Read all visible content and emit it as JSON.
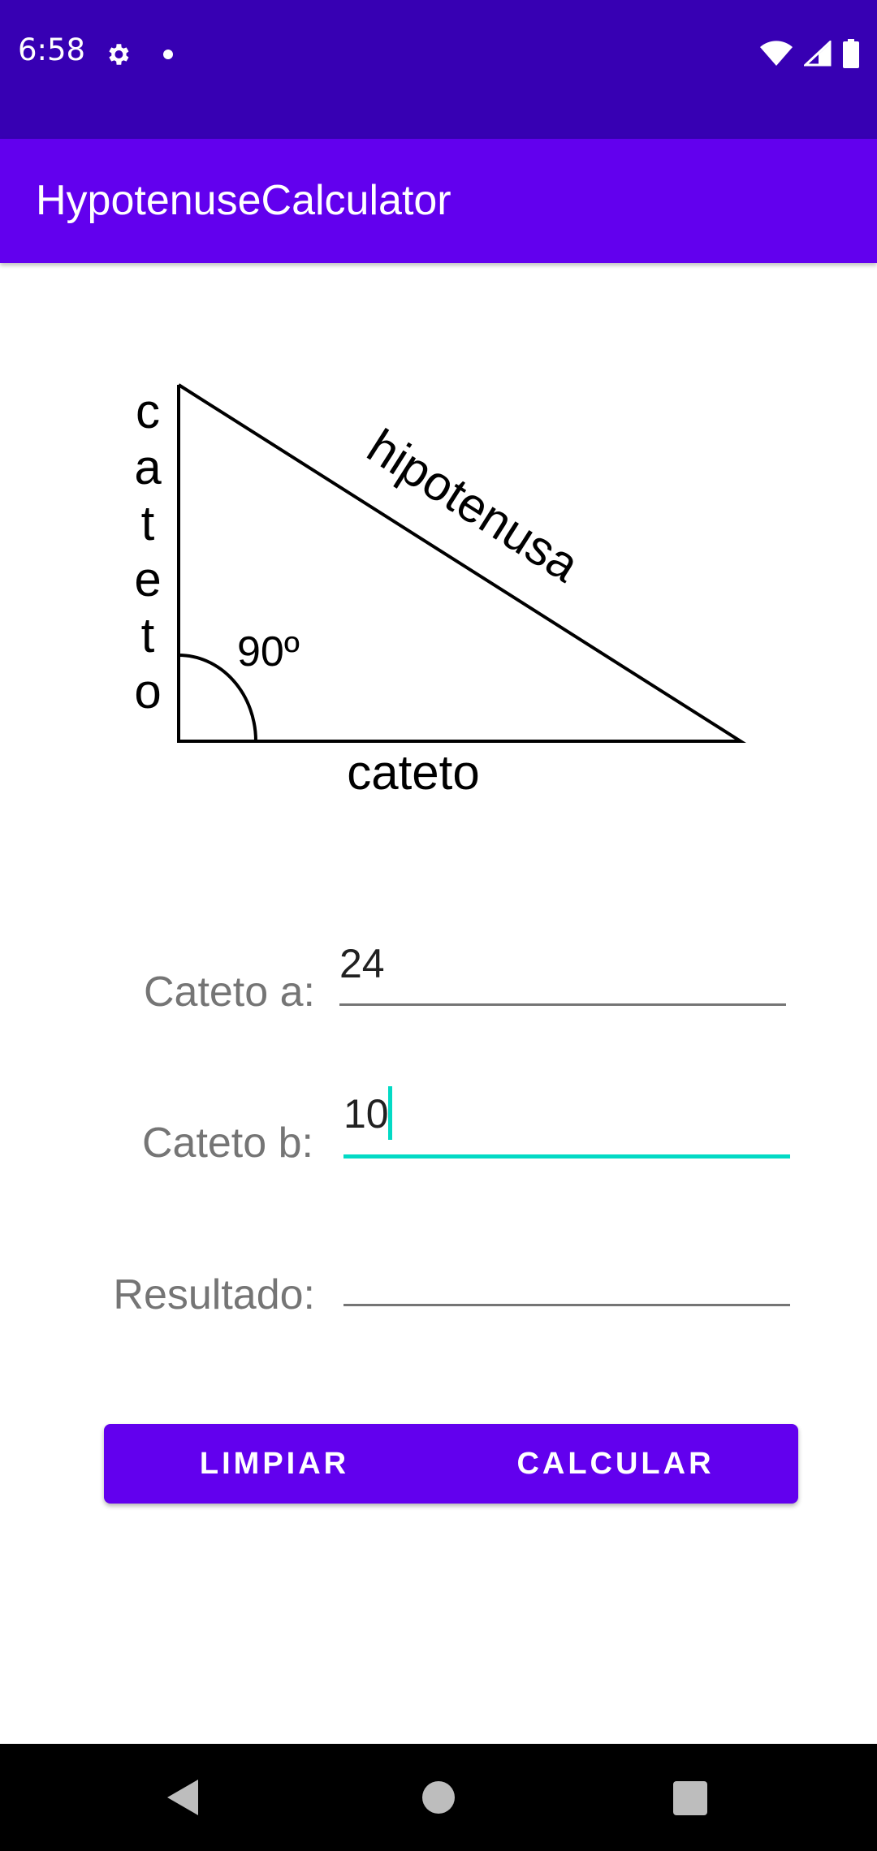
{
  "status_bar": {
    "time": "6:58",
    "icons": [
      "settings-icon",
      "notification-dot",
      "wifi-icon",
      "cell-signal-icon",
      "battery-icon"
    ]
  },
  "app_bar": {
    "title": "HypotenuseCalculator"
  },
  "diagram": {
    "vertical_label": [
      "c",
      "a",
      "t",
      "e",
      "t",
      "o"
    ],
    "hypotenuse_label": "hipotenusa",
    "angle_label": "90º",
    "bottom_label": "cateto"
  },
  "form": {
    "cateto_a": {
      "label": "Cateto a:",
      "value": "24"
    },
    "cateto_b": {
      "label": "Cateto b:",
      "value": "10"
    },
    "resultado": {
      "label": "Resultado:",
      "value": ""
    }
  },
  "buttons": {
    "clear_label": "LIMPIAR",
    "calculate_label": "CALCULAR"
  },
  "colors": {
    "status_bar": "#3700B3",
    "primary": "#6200EE",
    "accent": "#03DAC5"
  },
  "nav_bar": {
    "icons": [
      "back-icon",
      "home-icon",
      "recents-icon"
    ]
  }
}
